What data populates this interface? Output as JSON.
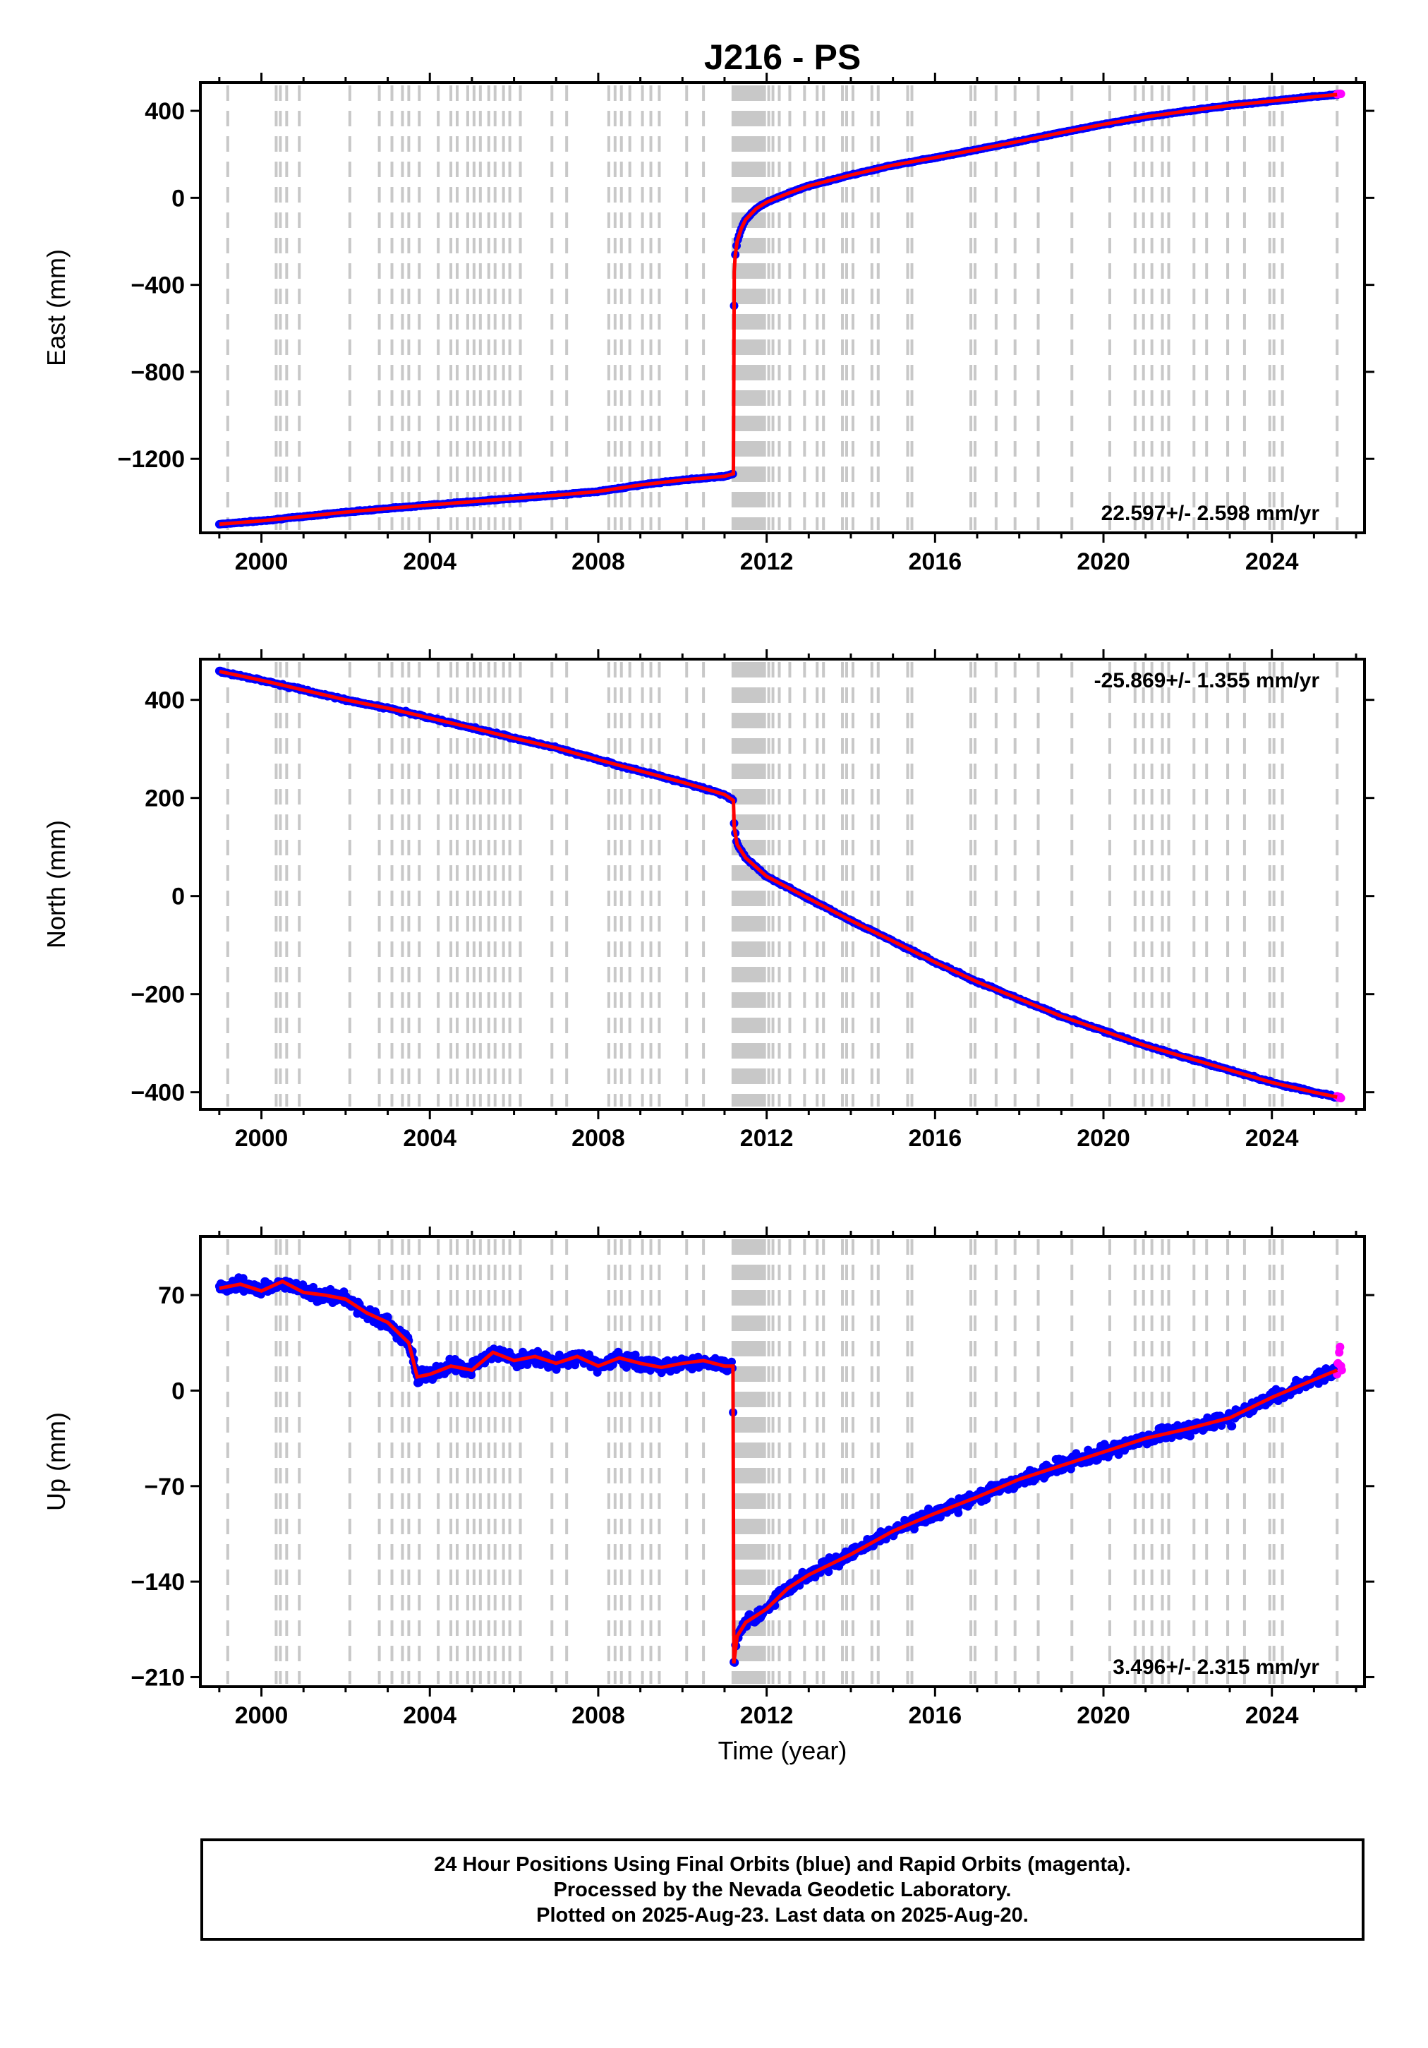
{
  "title": "J216 - PS",
  "colors": {
    "final": "#0000ff",
    "rapid": "#ff00ff",
    "model": "#ff0000",
    "steps": "#c8c8c8"
  },
  "x_tick_labels": [
    "2000",
    "2004",
    "2008",
    "2012",
    "2016",
    "2020",
    "2024"
  ],
  "x_axis_label": "Time (year)",
  "step_epochs": [
    1999.2,
    2000.35,
    2000.45,
    2000.6,
    2000.9,
    2002.1,
    2002.8,
    2003.1,
    2003.35,
    2003.5,
    2003.75,
    2004.2,
    2004.5,
    2004.65,
    2004.9,
    2005.05,
    2005.2,
    2005.4,
    2005.55,
    2005.75,
    2005.9,
    2006.15,
    2006.9,
    2007.25,
    2008.25,
    2008.4,
    2008.55,
    2008.75,
    2009.05,
    2009.25,
    2009.45,
    2010.1,
    2010.5,
    2011.2,
    2011.25,
    2011.3,
    2011.35,
    2011.4,
    2011.45,
    2011.5,
    2011.55,
    2011.6,
    2011.65,
    2011.7,
    2011.75,
    2011.8,
    2011.85,
    2011.9,
    2011.95,
    2012.05,
    2012.15,
    2012.3,
    2012.55,
    2012.9,
    2013.2,
    2013.35,
    2013.8,
    2013.9,
    2014.05,
    2014.5,
    2014.65,
    2015.35,
    2015.45,
    2016.85,
    2016.95,
    2017.45,
    2017.9,
    2018.45,
    2019.25,
    2020.15,
    2020.75,
    2020.95,
    2021.15,
    2021.4,
    2021.55,
    2022.15,
    2022.45,
    2022.95,
    2023.35,
    2023.95,
    2024.05,
    2024.25,
    2025.55
  ],
  "chart_data": [
    {
      "type": "scatter",
      "component": "east",
      "ylabel": "East (mm)",
      "y_tick_labels": [
        "400",
        "0",
        "−400",
        "−800",
        "−1200"
      ],
      "y_ticks": [
        400,
        0,
        -400,
        -800,
        -1200
      ],
      "xlim": [
        1998.55,
        2026.2
      ],
      "ylim": [
        -1540,
        530
      ],
      "rate_label": "22.597+/- 2.598 mm/yr",
      "rate_position": "bottom-right",
      "series": [
        {
          "name": "Final Orbits",
          "x": [
            1999.0,
            2000.0,
            2001.0,
            2002.0,
            2003.0,
            2004.0,
            2005.0,
            2006.0,
            2007.0,
            2008.0,
            2009.0,
            2010.0,
            2011.0,
            2011.21,
            2011.23,
            2011.25,
            2011.3,
            2011.4,
            2011.5,
            2011.75,
            2012.0,
            2012.5,
            2013.0,
            2014.0,
            2015.0,
            2016.0,
            2017.0,
            2018.0,
            2019.0,
            2020.0,
            2021.0,
            2022.0,
            2023.0,
            2024.0,
            2025.0,
            2025.55
          ],
          "y": [
            -1500,
            -1485,
            -1465,
            -1445,
            -1428,
            -1412,
            -1397,
            -1382,
            -1367,
            -1350,
            -1320,
            -1297,
            -1280,
            -1268,
            -340,
            -270,
            -200,
            -140,
            -100,
            -50,
            -20,
            20,
            55,
            105,
            150,
            185,
            222,
            260,
            300,
            338,
            372,
            400,
            425,
            445,
            465,
            475
          ]
        },
        {
          "name": "Rapid Orbits",
          "x": [
            2025.55,
            2025.58,
            2025.6,
            2025.62,
            2025.64
          ],
          "y": [
            476,
            478,
            477,
            479,
            478
          ]
        }
      ]
    },
    {
      "type": "scatter",
      "component": "north",
      "ylabel": "North (mm)",
      "y_tick_labels": [
        "400",
        "200",
        "0",
        "−200",
        "−400"
      ],
      "y_ticks": [
        400,
        200,
        0,
        -200,
        -400
      ],
      "xlim": [
        1998.55,
        2026.2
      ],
      "ylim": [
        -435,
        483
      ],
      "rate_label": "-25.869+/- 1.355 mm/yr",
      "rate_position": "top-right",
      "series": [
        {
          "name": "Final Orbits",
          "x": [
            1999.0,
            2000.0,
            2001.0,
            2002.0,
            2003.0,
            2004.0,
            2005.0,
            2006.0,
            2007.0,
            2008.0,
            2009.0,
            2010.0,
            2011.0,
            2011.21,
            2011.23,
            2011.3,
            2011.5,
            2012.0,
            2013.0,
            2014.0,
            2015.0,
            2016.0,
            2017.0,
            2018.0,
            2019.0,
            2020.0,
            2021.0,
            2022.0,
            2023.0,
            2024.0,
            2025.0,
            2025.55
          ],
          "y": [
            458,
            440,
            420,
            400,
            383,
            363,
            343,
            322,
            302,
            278,
            255,
            232,
            207,
            195,
            140,
            105,
            78,
            40,
            -5,
            -50,
            -92,
            -135,
            -175,
            -210,
            -245,
            -275,
            -305,
            -330,
            -355,
            -380,
            -400,
            -410
          ]
        },
        {
          "name": "Rapid Orbits",
          "x": [
            2025.55,
            2025.58,
            2025.6,
            2025.62,
            2025.64
          ],
          "y": [
            -408,
            -410,
            -411,
            -410,
            -412
          ]
        }
      ]
    },
    {
      "type": "scatter",
      "component": "up",
      "ylabel": "Up (mm)",
      "y_tick_labels": [
        "70",
        "0",
        "−70",
        "−140",
        "−210"
      ],
      "y_ticks": [
        70,
        0,
        -70,
        -140,
        -210
      ],
      "xlim": [
        1998.55,
        2026.2
      ],
      "ylim": [
        -217,
        113
      ],
      "rate_label": "3.496+/- 2.315 mm/yr",
      "rate_position": "bottom-right",
      "series": [
        {
          "name": "Final Orbits",
          "x": [
            1999.0,
            1999.5,
            2000.0,
            2000.5,
            2001.0,
            2001.5,
            2002.0,
            2002.5,
            2003.0,
            2003.5,
            2003.7,
            2004.0,
            2004.5,
            2005.0,
            2005.5,
            2006.0,
            2006.5,
            2007.0,
            2007.5,
            2008.0,
            2008.5,
            2009.0,
            2009.5,
            2010.0,
            2010.5,
            2011.0,
            2011.2,
            2011.22,
            2011.3,
            2011.5,
            2012.0,
            2012.5,
            2013.0,
            2014.0,
            2015.0,
            2016.0,
            2017.0,
            2018.0,
            2019.0,
            2020.0,
            2021.0,
            2022.0,
            2023.0,
            2024.0,
            2025.0,
            2025.55
          ],
          "y": [
            75,
            78,
            73,
            80,
            72,
            70,
            67,
            57,
            50,
            35,
            10,
            12,
            18,
            15,
            28,
            22,
            25,
            20,
            25,
            18,
            24,
            20,
            17,
            20,
            22,
            18,
            18,
            -200,
            -180,
            -170,
            -160,
            -145,
            -135,
            -120,
            -103,
            -90,
            -78,
            -65,
            -55,
            -45,
            -35,
            -28,
            -20,
            -5,
            8,
            15
          ]
        },
        {
          "name": "Rapid Orbits",
          "x": [
            2025.55,
            2025.57,
            2025.6,
            2025.62,
            2025.64,
            2025.66
          ],
          "y": [
            12,
            20,
            28,
            32,
            18,
            15
          ]
        }
      ]
    }
  ],
  "footer": {
    "line1": "24 Hour Positions Using Final Orbits (blue) and Rapid Orbits (magenta).",
    "line2": "Processed by the Nevada Geodetic Laboratory.",
    "line3": "Plotted on 2025-Aug-23. Last data on 2025-Aug-20."
  }
}
